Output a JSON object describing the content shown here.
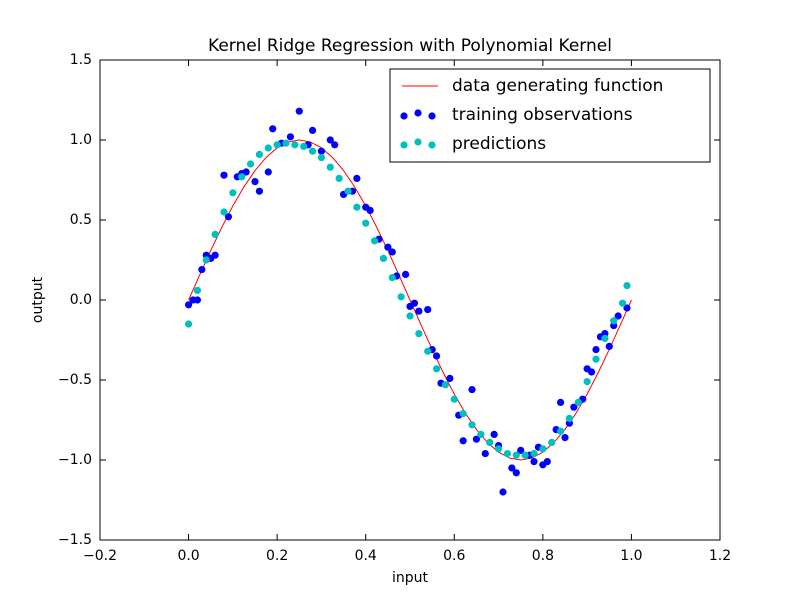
{
  "chart_data": {
    "type": "scatter",
    "title": "Kernel Ridge Regression with Polynomial Kernel",
    "x_label": "input",
    "y_label": "output",
    "xlim": [
      -0.2,
      1.2
    ],
    "ylim": [
      -1.5,
      1.5
    ],
    "xticks": [
      {
        "value": -0.2,
        "label": "−0.2"
      },
      {
        "value": 0,
        "label": "0.0"
      },
      0.2,
      0.4,
      0.6,
      0.8,
      {
        "value": 1,
        "label": "1.0"
      },
      1.2
    ],
    "yticks": [
      {
        "value": -1.5,
        "label": "−1.5"
      },
      {
        "value": -1,
        "label": "−1.0"
      },
      {
        "value": -0.5,
        "label": "−0.5"
      },
      {
        "value": 0,
        "label": "0.0"
      },
      0.5,
      {
        "value": 1,
        "label": "1.0"
      },
      1.5
    ],
    "legend": "upper right",
    "series": [
      {
        "name": "data generating function",
        "type": "line",
        "color": "#ff0000",
        "x": [
          0,
          0.025,
          0.05,
          0.075,
          0.1,
          0.125,
          0.15,
          0.175,
          0.2,
          0.225,
          0.25,
          0.275,
          0.3,
          0.325,
          0.35,
          0.375,
          0.4,
          0.425,
          0.45,
          0.475,
          0.5,
          0.525,
          0.55,
          0.575,
          0.6,
          0.625,
          0.65,
          0.675,
          0.7,
          0.725,
          0.75,
          0.775,
          0.8,
          0.825,
          0.85,
          0.875,
          0.9,
          0.925,
          0.95,
          0.975,
          1
        ],
        "values": [
          0,
          0.156,
          0.309,
          0.454,
          0.588,
          0.707,
          0.809,
          0.891,
          0.951,
          0.988,
          1,
          0.988,
          0.951,
          0.891,
          0.809,
          0.707,
          0.588,
          0.454,
          0.309,
          0.156,
          0,
          -0.156,
          -0.309,
          -0.454,
          -0.588,
          -0.707,
          -0.809,
          -0.891,
          -0.951,
          -0.988,
          -1,
          -0.988,
          -0.951,
          -0.891,
          -0.809,
          -0.707,
          -0.588,
          -0.454,
          -0.309,
          -0.156,
          0
        ]
      },
      {
        "name": "training observations",
        "type": "scatter",
        "color": "#0000ff",
        "x": [
          0,
          0.01,
          0.02,
          0.03,
          0.04,
          0.05,
          0.06,
          0.08,
          0.09,
          0.11,
          0.12,
          0.13,
          0.15,
          0.16,
          0.18,
          0.19,
          0.21,
          0.23,
          0.25,
          0.27,
          0.28,
          0.3,
          0.32,
          0.33,
          0.35,
          0.37,
          0.38,
          0.4,
          0.41,
          0.43,
          0.45,
          0.46,
          0.47,
          0.49,
          0.5,
          0.51,
          0.52,
          0.54,
          0.55,
          0.56,
          0.57,
          0.59,
          0.61,
          0.62,
          0.64,
          0.65,
          0.67,
          0.69,
          0.7,
          0.71,
          0.73,
          0.74,
          0.75,
          0.77,
          0.78,
          0.79,
          0.8,
          0.81,
          0.83,
          0.84,
          0.85,
          0.86,
          0.87,
          0.89,
          0.9,
          0.91,
          0.92,
          0.93,
          0.94,
          0.95,
          0.96,
          0.97,
          0.99
        ],
        "values": [
          -0.03,
          0,
          0,
          0.19,
          0.28,
          0.26,
          0.28,
          0.78,
          0.52,
          0.77,
          0.79,
          0.8,
          0.74,
          0.68,
          0.8,
          1.07,
          0.98,
          1.02,
          1.18,
          0.97,
          1.06,
          0.93,
          1,
          0.97,
          0.66,
          0.68,
          0.76,
          0.58,
          0.56,
          0.38,
          0.33,
          0.3,
          0.15,
          0.16,
          -0.04,
          -0.02,
          -0.07,
          -0.06,
          -0.31,
          -0.35,
          -0.52,
          -0.49,
          -0.72,
          -0.88,
          -0.56,
          -0.87,
          -0.96,
          -0.84,
          -0.91,
          -1.2,
          -1.05,
          -1.08,
          -0.94,
          -0.97,
          -1.01,
          -0.92,
          -1.03,
          -1.01,
          -0.81,
          -0.64,
          -0.86,
          -0.77,
          -0.67,
          -0.62,
          -0.43,
          -0.45,
          -0.31,
          -0.23,
          -0.21,
          -0.29,
          -0.16,
          -0.1,
          -0.05
        ]
      },
      {
        "name": "predictions",
        "type": "scatter",
        "color": "#00bfbf",
        "x": [
          0,
          0.02,
          0.04,
          0.06,
          0.08,
          0.1,
          0.12,
          0.14,
          0.16,
          0.18,
          0.2,
          0.22,
          0.24,
          0.26,
          0.28,
          0.3,
          0.32,
          0.34,
          0.36,
          0.38,
          0.4,
          0.42,
          0.44,
          0.46,
          0.48,
          0.5,
          0.52,
          0.54,
          0.56,
          0.58,
          0.6,
          0.62,
          0.64,
          0.66,
          0.68,
          0.7,
          0.72,
          0.74,
          0.76,
          0.78,
          0.8,
          0.82,
          0.84,
          0.86,
          0.88,
          0.9,
          0.92,
          0.94,
          0.96,
          0.98,
          0.99
        ],
        "values": [
          -0.15,
          0.06,
          0.25,
          0.41,
          0.55,
          0.67,
          0.77,
          0.85,
          0.91,
          0.95,
          0.97,
          0.98,
          0.97,
          0.96,
          0.93,
          0.89,
          0.83,
          0.76,
          0.68,
          0.58,
          0.48,
          0.37,
          0.26,
          0.14,
          0.02,
          -0.1,
          -0.21,
          -0.32,
          -0.43,
          -0.53,
          -0.62,
          -0.71,
          -0.78,
          -0.84,
          -0.89,
          -0.93,
          -0.96,
          -0.97,
          -0.97,
          -0.96,
          -0.93,
          -0.89,
          -0.82,
          -0.74,
          -0.64,
          -0.51,
          -0.37,
          -0.24,
          -0.13,
          -0.02,
          0.09
        ]
      }
    ]
  }
}
